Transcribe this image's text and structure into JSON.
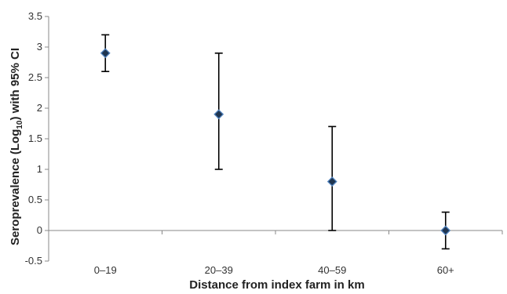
{
  "chart_data": {
    "type": "scatter",
    "title": "",
    "xlabel": "Distance from index farm in km",
    "ylabel_parts": [
      "Seroprevalence (Log",
      "10",
      ") with 95% CI"
    ],
    "categories": [
      "0–19",
      "20–39",
      "40–59",
      "60+"
    ],
    "series": [
      {
        "values": [
          2.9,
          1.9,
          0.8,
          0.0
        ],
        "lower": [
          2.6,
          1.0,
          0.0,
          -0.3
        ],
        "upper": [
          3.2,
          2.9,
          1.7,
          0.3
        ]
      }
    ],
    "ylim": [
      -0.5,
      3.5
    ],
    "yticks": [
      "-0.5",
      "0",
      "0.5",
      "1",
      "1.5",
      "2",
      "2.5",
      "3",
      "3.5"
    ],
    "grid": false,
    "legend": "none",
    "marker": "diamond",
    "marker_color": "#1f3550",
    "marker_edge": "#4f81bd",
    "errorbar_color": "#000000",
    "axis_color": "#888888"
  }
}
